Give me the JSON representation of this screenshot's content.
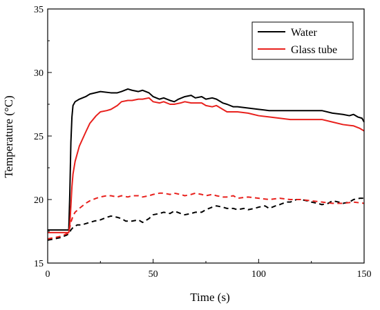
{
  "chart_data": {
    "type": "line",
    "title": "",
    "xlabel": "Time (s)",
    "ylabel": "Temperature (°C)",
    "xlim": [
      0,
      150
    ],
    "ylim": [
      15,
      35
    ],
    "x_ticks": [
      0,
      50,
      100,
      150
    ],
    "y_ticks": [
      15,
      20,
      25,
      30,
      35
    ],
    "grid": false,
    "legend": {
      "position": "top-right",
      "entries": [
        "Water",
        "Glass tube"
      ]
    },
    "series": [
      {
        "name": "Water",
        "color": "#000000",
        "style": "solid",
        "x": [
          0,
          10,
          10.5,
          11,
          11.5,
          12,
          13,
          15,
          18,
          20,
          25,
          30,
          33,
          35,
          38,
          40,
          43,
          45,
          48,
          50,
          53,
          55,
          58,
          60,
          62,
          65,
          68,
          70,
          73,
          75,
          78,
          80,
          83,
          85,
          88,
          90,
          95,
          100,
          105,
          110,
          115,
          120,
          125,
          130,
          135,
          140,
          143,
          145,
          147,
          149,
          150
        ],
        "y": [
          17.6,
          17.6,
          20.5,
          24.5,
          26.5,
          27.4,
          27.7,
          27.9,
          28.1,
          28.3,
          28.5,
          28.4,
          28.4,
          28.5,
          28.7,
          28.6,
          28.5,
          28.6,
          28.4,
          28.1,
          27.9,
          28.0,
          27.8,
          27.7,
          27.9,
          28.1,
          28.2,
          28.0,
          28.1,
          27.9,
          28.0,
          27.9,
          27.6,
          27.5,
          27.3,
          27.3,
          27.2,
          27.1,
          27.0,
          27.0,
          27.0,
          27.0,
          27.0,
          27.0,
          26.8,
          26.7,
          26.6,
          26.7,
          26.5,
          26.4,
          26.1
        ]
      },
      {
        "name": "Glass tube",
        "color": "#e8201c",
        "style": "solid",
        "x": [
          0,
          10,
          10.5,
          11,
          11.5,
          12,
          13,
          15,
          18,
          20,
          23,
          25,
          28,
          30,
          33,
          35,
          38,
          40,
          43,
          45,
          48,
          50,
          53,
          55,
          58,
          60,
          63,
          65,
          68,
          70,
          73,
          75,
          78,
          80,
          83,
          85,
          88,
          90,
          95,
          100,
          105,
          110,
          115,
          120,
          125,
          130,
          135,
          140,
          145,
          148,
          150
        ],
        "y": [
          17.4,
          17.4,
          18.0,
          19.5,
          21.0,
          22.0,
          23.0,
          24.2,
          25.3,
          26.0,
          26.6,
          26.9,
          27.0,
          27.1,
          27.4,
          27.7,
          27.8,
          27.8,
          27.9,
          27.9,
          28.0,
          27.7,
          27.6,
          27.7,
          27.5,
          27.5,
          27.6,
          27.7,
          27.6,
          27.6,
          27.6,
          27.4,
          27.3,
          27.4,
          27.1,
          26.9,
          26.9,
          26.9,
          26.8,
          26.6,
          26.5,
          26.4,
          26.3,
          26.3,
          26.3,
          26.3,
          26.1,
          25.9,
          25.8,
          25.6,
          25.4
        ]
      },
      {
        "name": "",
        "color": "#000000",
        "style": "dashed",
        "x": [
          0,
          3,
          6,
          9,
          10,
          11,
          12,
          14,
          16,
          18,
          20,
          22,
          25,
          28,
          30,
          33,
          35,
          37,
          40,
          43,
          45,
          48,
          50,
          53,
          55,
          58,
          60,
          63,
          65,
          68,
          70,
          73,
          75,
          78,
          80,
          83,
          85,
          88,
          90,
          93,
          95,
          98,
          100,
          103,
          105,
          108,
          110,
          113,
          115,
          118,
          120,
          123,
          125,
          128,
          130,
          133,
          135,
          138,
          140,
          143,
          145,
          148,
          150
        ],
        "y": [
          16.8,
          16.9,
          17.0,
          17.2,
          17.3,
          17.6,
          17.8,
          18.0,
          18.0,
          18.1,
          18.2,
          18.3,
          18.4,
          18.6,
          18.7,
          18.6,
          18.5,
          18.3,
          18.3,
          18.4,
          18.2,
          18.5,
          18.8,
          18.9,
          19.0,
          18.9,
          19.1,
          18.9,
          18.8,
          18.9,
          19.0,
          19.0,
          19.2,
          19.4,
          19.5,
          19.4,
          19.3,
          19.3,
          19.2,
          19.3,
          19.2,
          19.3,
          19.4,
          19.5,
          19.3,
          19.5,
          19.6,
          19.8,
          19.8,
          20.0,
          20.0,
          19.9,
          19.8,
          19.7,
          19.6,
          19.7,
          19.9,
          19.8,
          19.7,
          19.8,
          20.0,
          20.1,
          20.1
        ]
      },
      {
        "name": "",
        "color": "#e8201c",
        "style": "dashed",
        "x": [
          0,
          3,
          6,
          9,
          10,
          11,
          12,
          13,
          15,
          18,
          20,
          23,
          25,
          28,
          30,
          33,
          35,
          38,
          40,
          43,
          45,
          48,
          50,
          53,
          55,
          58,
          60,
          63,
          65,
          68,
          70,
          73,
          75,
          78,
          80,
          83,
          85,
          88,
          90,
          95,
          100,
          105,
          110,
          115,
          120,
          125,
          130,
          135,
          140,
          145,
          150
        ],
        "y": [
          16.9,
          17.0,
          17.1,
          17.3,
          17.4,
          18.2,
          18.7,
          19.0,
          19.3,
          19.7,
          19.9,
          20.1,
          20.2,
          20.3,
          20.3,
          20.2,
          20.3,
          20.2,
          20.3,
          20.3,
          20.2,
          20.3,
          20.4,
          20.5,
          20.5,
          20.4,
          20.5,
          20.4,
          20.3,
          20.4,
          20.5,
          20.4,
          20.3,
          20.4,
          20.3,
          20.2,
          20.2,
          20.3,
          20.1,
          20.2,
          20.1,
          20.0,
          20.1,
          20.0,
          20.0,
          19.9,
          19.8,
          19.7,
          19.7,
          19.8,
          19.7
        ]
      }
    ]
  }
}
